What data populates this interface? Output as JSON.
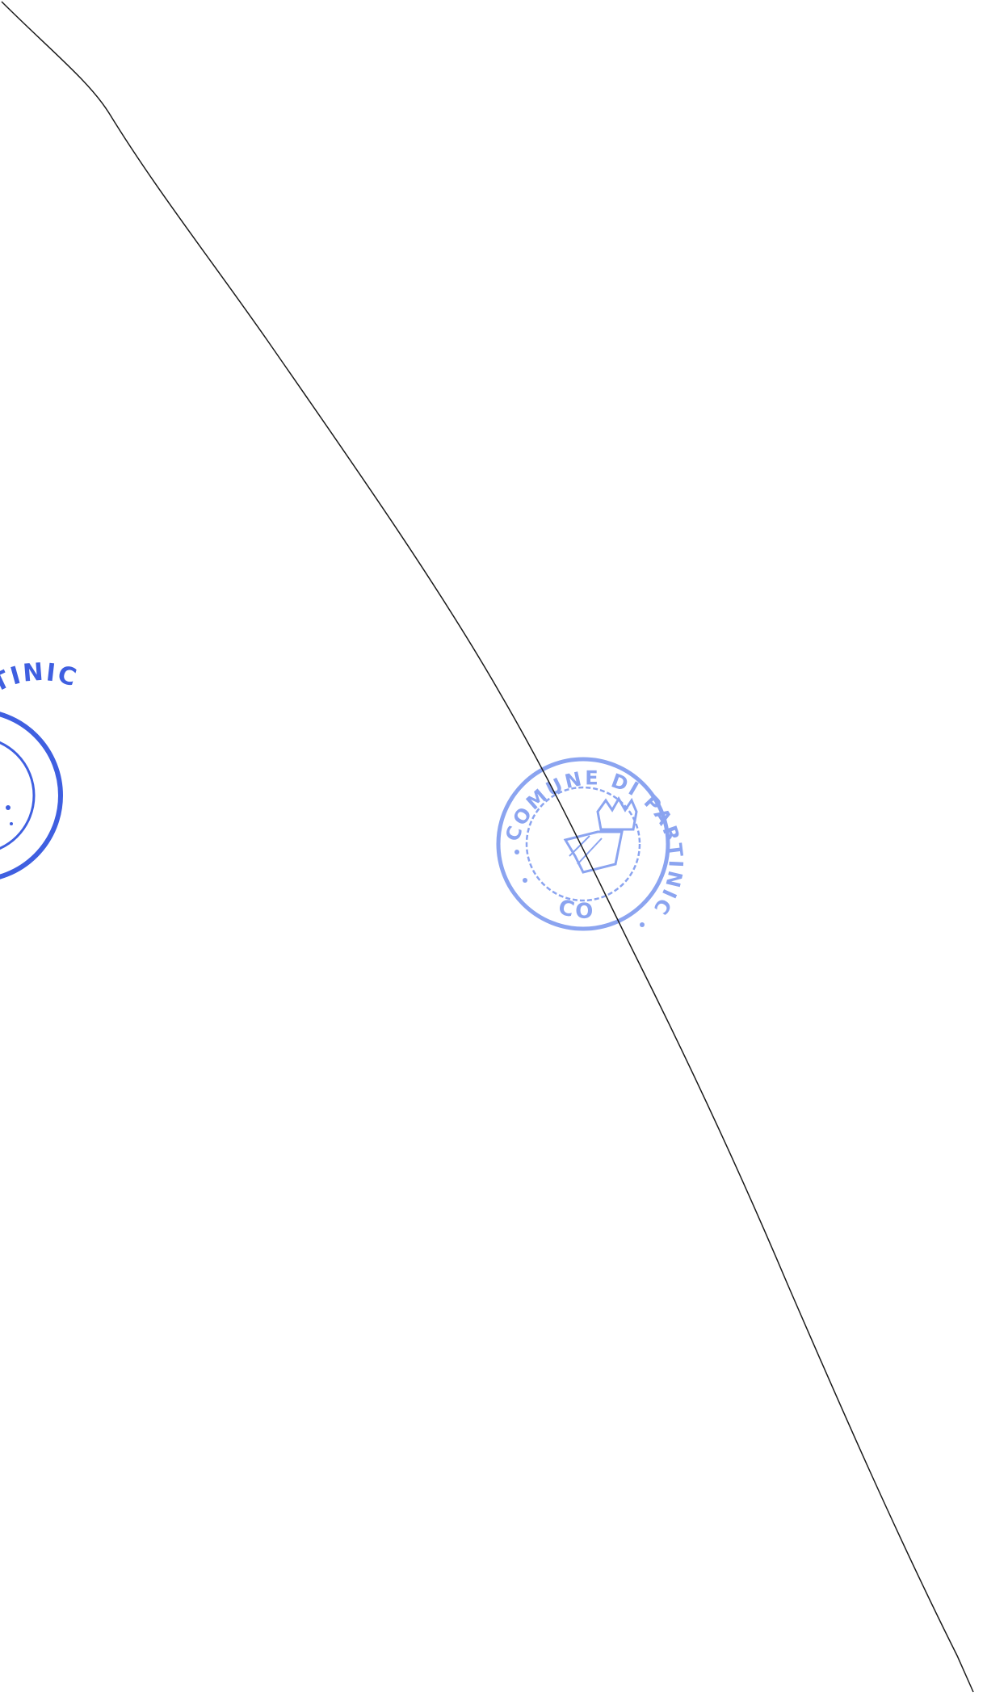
{
  "document": {
    "background": "#ffffff",
    "ink_color": "#1a1a1a"
  },
  "stamps": [
    {
      "id": "left-edge-stamp",
      "color": "#3f5fe0",
      "text": "DI PARTINIC",
      "partially_cut": true
    },
    {
      "id": "center-stamp",
      "color": "#7f9bef",
      "text_top": "COMUNE DI PARTINICO",
      "text_bottom": "CO",
      "emblem": "crown-crest-icon"
    }
  ],
  "strike_line": {
    "kind": "diagonal-cancellation-line"
  }
}
